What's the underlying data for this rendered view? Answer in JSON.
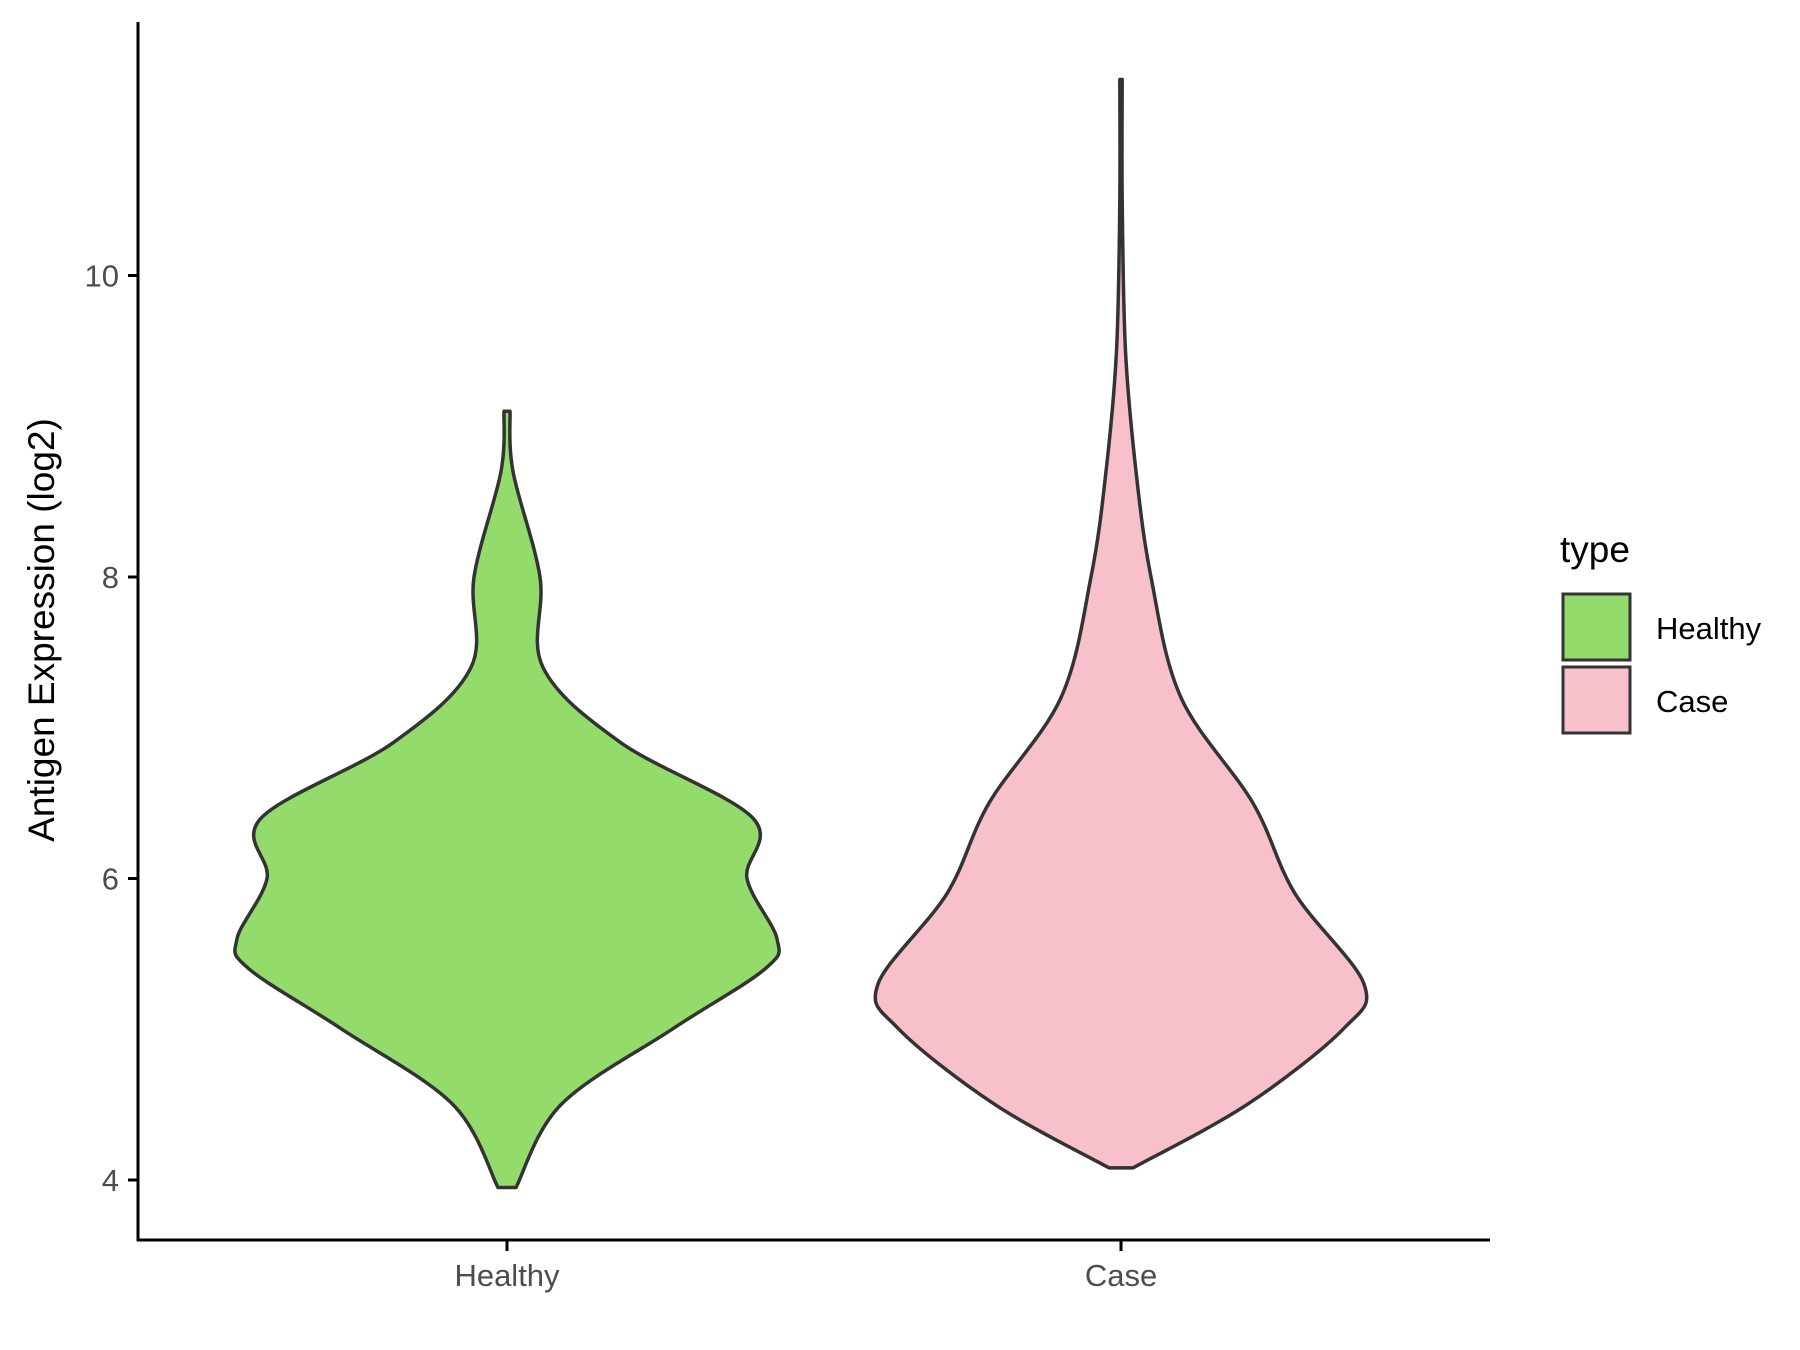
{
  "chart_data": {
    "type": "violin",
    "categories": [
      "Healthy",
      "Case"
    ],
    "xlabel": "",
    "ylabel": "Antigen Expression (log2)",
    "yticks": [
      4,
      6,
      8,
      10
    ],
    "ylim": [
      3.6,
      11.7
    ],
    "legend": {
      "title": "type",
      "position": "right",
      "entries": [
        {
          "label": "Healthy",
          "color": "#93dc6b"
        },
        {
          "label": "Case",
          "color": "#f7c0cb"
        }
      ]
    },
    "series": [
      {
        "category": "Healthy",
        "color": "#93dc6b",
        "min": 3.95,
        "max": 9.1,
        "density_profile": [
          {
            "y": 3.95,
            "half_width": 0.03
          },
          {
            "y": 4.5,
            "half_width": 0.18
          },
          {
            "y": 5.0,
            "half_width": 0.55
          },
          {
            "y": 5.4,
            "half_width": 0.86
          },
          {
            "y": 5.6,
            "half_width": 0.9
          },
          {
            "y": 6.0,
            "half_width": 0.8
          },
          {
            "y": 6.4,
            "half_width": 0.82
          },
          {
            "y": 6.9,
            "half_width": 0.38
          },
          {
            "y": 7.4,
            "half_width": 0.12
          },
          {
            "y": 8.0,
            "half_width": 0.11
          },
          {
            "y": 8.7,
            "half_width": 0.02
          },
          {
            "y": 9.1,
            "half_width": 0.01
          }
        ]
      },
      {
        "category": "Case",
        "color": "#f7c0cb",
        "min": 4.08,
        "max": 11.3,
        "density_profile": [
          {
            "y": 4.08,
            "half_width": 0.04
          },
          {
            "y": 4.5,
            "half_width": 0.42
          },
          {
            "y": 5.0,
            "half_width": 0.74
          },
          {
            "y": 5.3,
            "half_width": 0.81
          },
          {
            "y": 5.9,
            "half_width": 0.58
          },
          {
            "y": 6.5,
            "half_width": 0.44
          },
          {
            "y": 7.2,
            "half_width": 0.2
          },
          {
            "y": 8.0,
            "half_width": 0.1
          },
          {
            "y": 8.7,
            "half_width": 0.05
          },
          {
            "y": 9.5,
            "half_width": 0.015
          },
          {
            "y": 10.5,
            "half_width": 0.004
          },
          {
            "y": 11.3,
            "half_width": 0.004
          }
        ]
      }
    ]
  }
}
